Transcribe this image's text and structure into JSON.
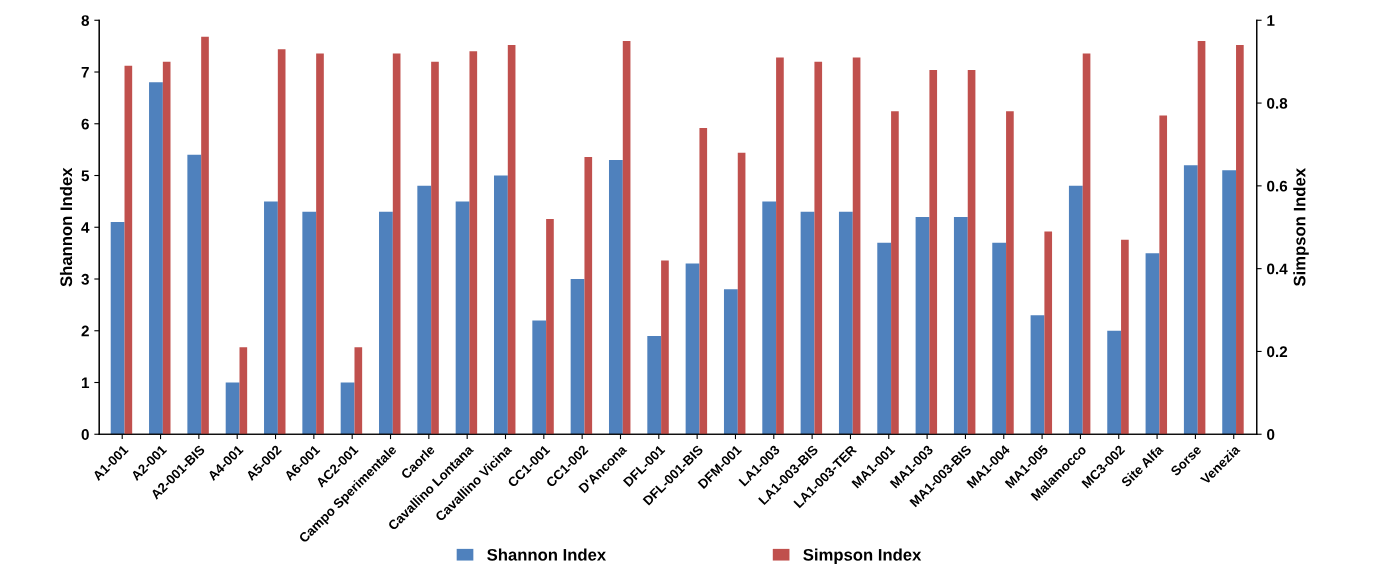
{
  "chart_data": {
    "type": "bar",
    "ylabel": "Shannon Index",
    "y2label": "Simpson Index",
    "categories": [
      "A1-001",
      "A2-001",
      "A2-001-BIS",
      "A4-001",
      "A5-002",
      "A6-001",
      "AC2-001",
      "Campo Sperimentale",
      "Caorle",
      "Cavallino Lontana",
      "Cavallino Vicina",
      "CC1-001",
      "CC1-002",
      "D'Ancona",
      "DFL-001",
      "DFL-001-BIS",
      "DFM-001",
      "LA1-003",
      "LA1-003-BIS",
      "LA1-003-TER",
      "MA1-001",
      "MA1-003",
      "MA1-003-BIS",
      "MA1-004",
      "MA1-005",
      "Malamocco",
      "MC3-002",
      "Site Alfa",
      "Sorse",
      "Venezia"
    ],
    "series": [
      {
        "name": "Shannon Index",
        "color": "#4f81bd",
        "values": [
          4.1,
          6.8,
          5.4,
          1.0,
          4.5,
          4.3,
          1.0,
          4.3,
          4.8,
          4.5,
          5.0,
          2.2,
          3.0,
          5.3,
          1.9,
          3.3,
          2.8,
          4.5,
          4.3,
          4.3,
          3.7,
          4.2,
          4.2,
          3.7,
          2.3,
          4.8,
          2.0,
          3.5,
          5.2,
          5.1
        ]
      },
      {
        "name": "Simpson Index",
        "color": "#c0504d",
        "axis": "y2",
        "values": [
          0.89,
          0.9,
          0.96,
          0.21,
          0.93,
          0.92,
          0.21,
          0.92,
          0.9,
          0.925,
          0.94,
          0.52,
          0.67,
          0.95,
          0.42,
          0.74,
          0.68,
          0.91,
          0.9,
          0.91,
          0.78,
          0.88,
          0.88,
          0.78,
          0.49,
          0.92,
          0.47,
          0.77,
          0.95,
          0.94
        ]
      }
    ],
    "ylim": [
      0,
      8
    ],
    "yticks": [
      0,
      1,
      2,
      3,
      4,
      5,
      6,
      7,
      8
    ],
    "y2lim": [
      0,
      1
    ],
    "y2ticks": [
      0,
      0.2,
      0.4,
      0.6,
      0.8,
      1
    ],
    "grid": false,
    "legend": "bottom"
  }
}
